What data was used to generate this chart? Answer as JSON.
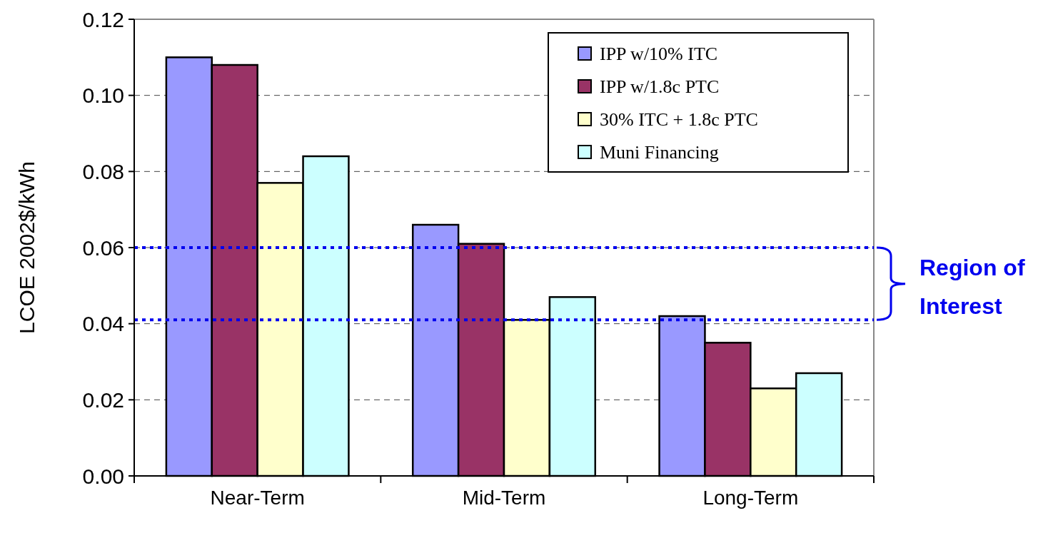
{
  "chart_data": {
    "type": "bar",
    "ylabel": "LCOE 2002$/kWh",
    "categories": [
      "Near-Term",
      "Mid-Term",
      "Long-Term"
    ],
    "series": [
      {
        "name": "IPP w/10% ITC",
        "color": "#9999ff",
        "values": [
          0.11,
          0.066,
          0.042
        ]
      },
      {
        "name": "IPP w/1.8c PTC",
        "color": "#993366",
        "values": [
          0.108,
          0.061,
          0.035
        ]
      },
      {
        "name": "30% ITC + 1.8c PTC",
        "color": "#ffffcc",
        "values": [
          0.077,
          0.041,
          0.023
        ]
      },
      {
        "name": "Muni Financing",
        "color": "#ccffff",
        "values": [
          0.084,
          0.047,
          0.027
        ]
      }
    ],
    "ylim": [
      0,
      0.12
    ],
    "yticks": [
      {
        "value": 0,
        "label": "0.00"
      },
      {
        "value": 0.02,
        "label": "0.02"
      },
      {
        "value": 0.04,
        "label": "0.04"
      },
      {
        "value": 0.06,
        "label": "0.06"
      },
      {
        "value": 0.08,
        "label": "0.08"
      },
      {
        "value": 0.1,
        "label": "0.10"
      },
      {
        "value": 0.12,
        "label": "0.12"
      }
    ],
    "grid": "y",
    "legend": "top right",
    "ref_lines": [
      {
        "axis": "y",
        "value": 0.06,
        "color": "#0000ee",
        "line_style": "dotted"
      },
      {
        "axis": "y",
        "value": 0.041,
        "color": "#0000ee",
        "line_style": "dotted"
      }
    ],
    "annotations": [
      "Region of Interest"
    ]
  }
}
